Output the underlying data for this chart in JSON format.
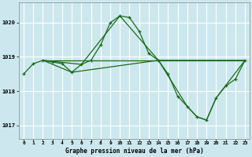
{
  "title": "Graphe pression niveau de la mer (hPa)",
  "bg_color": "#cce8ee",
  "grid_color": "#ffffff",
  "line_color": "#1a6b1a",
  "xlim": [
    -0.5,
    23.5
  ],
  "ylim": [
    1016.6,
    1020.6
  ],
  "yticks": [
    1017,
    1018,
    1019,
    1020
  ],
  "xticks": [
    0,
    1,
    2,
    3,
    4,
    5,
    6,
    7,
    8,
    9,
    10,
    11,
    12,
    13,
    14,
    15,
    16,
    17,
    18,
    19,
    20,
    21,
    22,
    23
  ],
  "series": [
    {
      "x": [
        0,
        1,
        2,
        3,
        4,
        5,
        6,
        7,
        8,
        9,
        10,
        11,
        12,
        13,
        14,
        15,
        16,
        17,
        18,
        19,
        20,
        21,
        22,
        23
      ],
      "y": [
        1018.5,
        1018.8,
        1018.9,
        1018.85,
        1018.8,
        1018.55,
        1018.78,
        1018.9,
        1019.35,
        1020.0,
        1020.2,
        1020.15,
        1019.75,
        1019.1,
        1018.9,
        1018.5,
        1017.85,
        1017.55,
        1017.25,
        1017.15,
        1017.8,
        1018.15,
        1018.35,
        1018.9
      ]
    },
    {
      "x": [
        2,
        23
      ],
      "y": [
        1018.9,
        1018.9
      ]
    },
    {
      "x": [
        2,
        6,
        10,
        14,
        23
      ],
      "y": [
        1018.9,
        1018.78,
        1020.2,
        1018.9,
        1018.9
      ]
    },
    {
      "x": [
        2,
        5,
        14,
        17,
        18,
        19,
        20,
        23
      ],
      "y": [
        1018.9,
        1018.55,
        1018.9,
        1017.55,
        1017.25,
        1017.15,
        1017.8,
        1018.9
      ]
    }
  ]
}
